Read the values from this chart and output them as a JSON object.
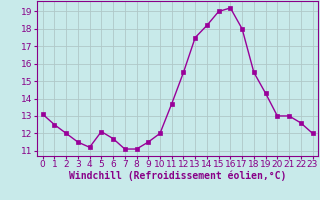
{
  "x": [
    0,
    1,
    2,
    3,
    4,
    5,
    6,
    7,
    8,
    9,
    10,
    11,
    12,
    13,
    14,
    15,
    16,
    17,
    18,
    19,
    20,
    21,
    22,
    23
  ],
  "y": [
    13.1,
    12.5,
    12.0,
    11.5,
    11.2,
    12.1,
    11.7,
    11.1,
    11.1,
    11.5,
    12.0,
    13.7,
    15.5,
    17.5,
    18.2,
    19.0,
    19.2,
    18.0,
    15.5,
    14.3,
    13.0,
    13.0,
    12.6,
    12.0
  ],
  "line_color": "#990099",
  "marker": "s",
  "marker_size": 2.5,
  "bg_color": "#c8eaea",
  "grid_color": "#b0c8c8",
  "xlabel": "Windchill (Refroidissement éolien,°C)",
  "ylim": [
    10.7,
    19.6
  ],
  "xlim": [
    -0.5,
    23.5
  ],
  "yticks": [
    11,
    12,
    13,
    14,
    15,
    16,
    17,
    18,
    19
  ],
  "xticks": [
    0,
    1,
    2,
    3,
    4,
    5,
    6,
    7,
    8,
    9,
    10,
    11,
    12,
    13,
    14,
    15,
    16,
    17,
    18,
    19,
    20,
    21,
    22,
    23
  ],
  "tick_color": "#880088",
  "label_color": "#880088",
  "font_size": 6.5,
  "xlabel_fontsize": 7.0,
  "linewidth": 1.0,
  "spine_color": "#880088",
  "border_color": "#880088"
}
